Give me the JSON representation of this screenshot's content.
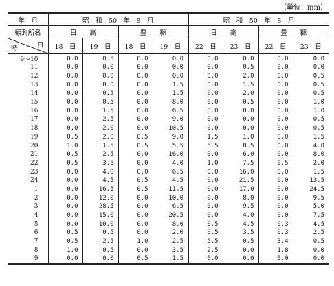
{
  "unit_label": "（単位：mm）",
  "header": {
    "row1_label": "年　月",
    "period_left": "昭　和　50　年　8　月",
    "period_right": "昭　和　50　年　8　月",
    "row2_label": "観測所名",
    "stations": [
      "日　　高",
      "豊　　糠",
      "日　　高",
      "豊　　糠"
    ],
    "corner_top": "日",
    "corner_bottom": "時",
    "days": [
      "18　日",
      "19　日",
      "18　日",
      "19　日",
      "22　日",
      "23　日",
      "22　日",
      "23　日"
    ]
  },
  "rows": [
    {
      "hour": "9〜10",
      "v": [
        "0.0",
        "0.5",
        "0.0",
        "0.0",
        "0.0",
        "0.0",
        "0.0",
        "0.0"
      ]
    },
    {
      "hour": "11",
      "v": [
        "0.0",
        "0.0",
        "0.0",
        "0.0",
        "0.0",
        "0.5",
        "0.0",
        "0.0"
      ]
    },
    {
      "hour": "12",
      "v": [
        "0.0",
        "0.0",
        "0.0",
        "0.0",
        "0.0",
        "2.0",
        "0.0",
        "0.5"
      ]
    },
    {
      "hour": "13",
      "v": [
        "0.0",
        "0.0",
        "0.0",
        "1.5",
        "0.0",
        "1.5",
        "0.0",
        "0.5"
      ]
    },
    {
      "hour": "14",
      "v": [
        "0.0",
        "0.5",
        "0.0",
        "1.5",
        "0.0",
        "2.0",
        "0.0",
        "0.5"
      ]
    },
    {
      "hour": "15",
      "v": [
        "0.0",
        "0.5",
        "0.0",
        "8.0",
        "0.0",
        "0.5",
        "0.0",
        "1.0"
      ]
    },
    {
      "hour": "16",
      "v": [
        "0.0",
        "1.5",
        "0.0",
        "6.5",
        "0.0",
        "0.0",
        "0.0",
        "1.0"
      ]
    },
    {
      "hour": "17",
      "v": [
        "0.0",
        "2.5",
        "0.0",
        "9.0",
        "0.0",
        "0.0",
        "0.0",
        "0.5"
      ]
    },
    {
      "hour": "18",
      "v": [
        "0.0",
        "2.0",
        "0.0",
        "10.5",
        "0.0",
        "0.0",
        "0.0",
        "0.5"
      ]
    },
    {
      "hour": "19",
      "v": [
        "0.5",
        "2.0",
        "0.5",
        "9.0",
        "1.5",
        "1.0",
        "0.0",
        "1.5"
      ]
    },
    {
      "hour": "20",
      "v": [
        "1.0",
        "1.5",
        "0.5",
        "5.5",
        "5.5",
        "8.5",
        "0.0",
        "4.0"
      ]
    },
    {
      "hour": "21",
      "v": [
        "0.5",
        "2.5",
        "0.0",
        "16.0",
        "0.0",
        "6.0",
        "0.0",
        "8.0"
      ]
    },
    {
      "hour": "22",
      "v": [
        "0.5",
        "3.5",
        "0.0",
        "4.0",
        "1.0",
        "7.5",
        "0.5",
        "2.0"
      ]
    },
    {
      "hour": "23",
      "v": [
        "0.0",
        "4.0",
        "0.0",
        "6.5",
        "0.0",
        "16.0",
        "0.0",
        "1.5"
      ]
    },
    {
      "hour": "24",
      "v": [
        "0.0",
        "4.5",
        "0.5",
        "4.5",
        "0.0",
        "21.5",
        "0.0",
        "13.5"
      ]
    },
    {
      "hour": "1",
      "v": [
        "0.0",
        "16.5",
        "0.5",
        "11.5",
        "0.0",
        "17.0",
        "0.0",
        "24.5"
      ]
    },
    {
      "hour": "2",
      "v": [
        "0.0",
        "12.0",
        "0.0",
        "10.0",
        "0.0",
        "8.0",
        "0.0",
        "9.5"
      ]
    },
    {
      "hour": "3",
      "v": [
        "0.0",
        "28.5",
        "0.0",
        "6.5",
        "0.0",
        "9.5",
        "0.0",
        "5.0"
      ]
    },
    {
      "hour": "4",
      "v": [
        "0.0",
        "15.0",
        "0.0",
        "20.5",
        "0.0",
        "4.0",
        "0.0",
        "7.5"
      ]
    },
    {
      "hour": "5",
      "v": [
        "0.0",
        "10.0",
        "0.0",
        "8.0",
        "0.5",
        "4.5",
        "0.3",
        "4.5"
      ]
    },
    {
      "hour": "6",
      "v": [
        "0.5",
        "0.5",
        "0.0",
        "2.0",
        "0.5",
        "3.5",
        "0.3",
        "2.5"
      ]
    },
    {
      "hour": "7",
      "v": [
        "0.5",
        "2.5",
        "1.0",
        "2.5",
        "5.5",
        "0.5",
        "3.4",
        "0.5"
      ]
    },
    {
      "hour": "8",
      "v": [
        "1.0",
        "0.5",
        "0.0",
        "3.5",
        "2.5",
        "0.0",
        "1.8",
        "0.0"
      ]
    },
    {
      "hour": "9",
      "v": [
        "0.0",
        "0.0",
        "0.5",
        "1.5",
        "0.0",
        "0.0",
        "0.0",
        "0.0"
      ]
    }
  ]
}
